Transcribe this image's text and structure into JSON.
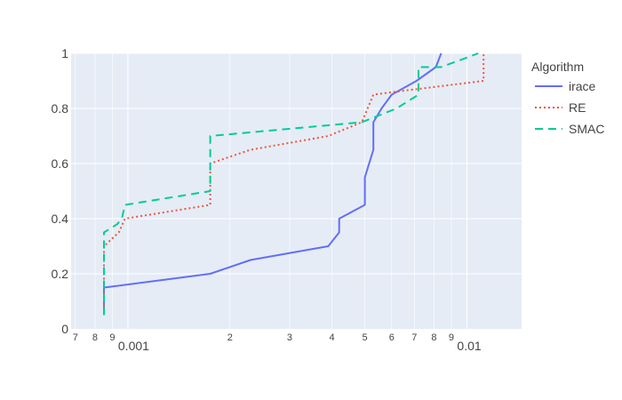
{
  "chart_data": {
    "type": "line",
    "title": "",
    "xlabel": "",
    "ylabel": "",
    "x_scale": "log",
    "xlim": [
      0.00068,
      0.0145
    ],
    "ylim": [
      0,
      1
    ],
    "grid": true,
    "legend": {
      "title": "Algorithm",
      "position": "right"
    },
    "x_ticks": [
      {
        "value": 0.0007,
        "label": "7",
        "size": "minor"
      },
      {
        "value": 0.0008,
        "label": "8",
        "size": "minor"
      },
      {
        "value": 0.0009,
        "label": "9",
        "size": "minor"
      },
      {
        "value": 0.001,
        "label": "0.001",
        "size": "major"
      },
      {
        "value": 0.002,
        "label": "2",
        "size": "minor"
      },
      {
        "value": 0.003,
        "label": "3",
        "size": "minor"
      },
      {
        "value": 0.004,
        "label": "4",
        "size": "minor"
      },
      {
        "value": 0.005,
        "label": "5",
        "size": "minor"
      },
      {
        "value": 0.006,
        "label": "6",
        "size": "minor"
      },
      {
        "value": 0.007,
        "label": "7",
        "size": "minor"
      },
      {
        "value": 0.008,
        "label": "8",
        "size": "minor"
      },
      {
        "value": 0.009,
        "label": "9",
        "size": "minor"
      },
      {
        "value": 0.01,
        "label": "0.01",
        "size": "major"
      }
    ],
    "y_ticks": [
      {
        "value": 0,
        "label": "0"
      },
      {
        "value": 0.2,
        "label": "0.2"
      },
      {
        "value": 0.4,
        "label": "0.4"
      },
      {
        "value": 0.6,
        "label": "0.6"
      },
      {
        "value": 0.8,
        "label": "0.8"
      },
      {
        "value": 1,
        "label": "1"
      }
    ],
    "series": [
      {
        "name": "irace",
        "color": "#636efa",
        "dash": "solid",
        "points": [
          [
            0.00085,
            0.05
          ],
          [
            0.00085,
            0.15
          ],
          [
            0.00175,
            0.2
          ],
          [
            0.0023,
            0.25
          ],
          [
            0.0039,
            0.3
          ],
          [
            0.0042,
            0.35
          ],
          [
            0.0042,
            0.4
          ],
          [
            0.005,
            0.45
          ],
          [
            0.005,
            0.55
          ],
          [
            0.0053,
            0.65
          ],
          [
            0.0053,
            0.75
          ],
          [
            0.0056,
            0.8
          ],
          [
            0.006,
            0.85
          ],
          [
            0.0071,
            0.9
          ],
          [
            0.0081,
            0.95
          ],
          [
            0.0084,
            1.0
          ]
        ]
      },
      {
        "name": "RE",
        "color": "#ef553b",
        "dash": "dot",
        "points": [
          [
            0.00085,
            0.05
          ],
          [
            0.00085,
            0.3
          ],
          [
            0.00094,
            0.35
          ],
          [
            0.00098,
            0.4
          ],
          [
            0.00175,
            0.45
          ],
          [
            0.00175,
            0.6
          ],
          [
            0.0023,
            0.65
          ],
          [
            0.0039,
            0.7
          ],
          [
            0.0049,
            0.75
          ],
          [
            0.0053,
            0.85
          ],
          [
            0.0061,
            0.86
          ],
          [
            0.0112,
            0.9
          ],
          [
            0.0112,
            1.0
          ]
        ]
      },
      {
        "name": "SMAC",
        "color": "#00cc96",
        "dash": "dash",
        "points": [
          [
            0.00085,
            0.05
          ],
          [
            0.00085,
            0.35
          ],
          [
            0.00093,
            0.38
          ],
          [
            0.00096,
            0.4
          ],
          [
            0.00098,
            0.45
          ],
          [
            0.00175,
            0.5
          ],
          [
            0.00175,
            0.7
          ],
          [
            0.0049,
            0.75
          ],
          [
            0.0062,
            0.8
          ],
          [
            0.0072,
            0.85
          ],
          [
            0.0072,
            0.95
          ],
          [
            0.0084,
            0.95
          ],
          [
            0.0108,
            1.0
          ]
        ]
      }
    ]
  }
}
